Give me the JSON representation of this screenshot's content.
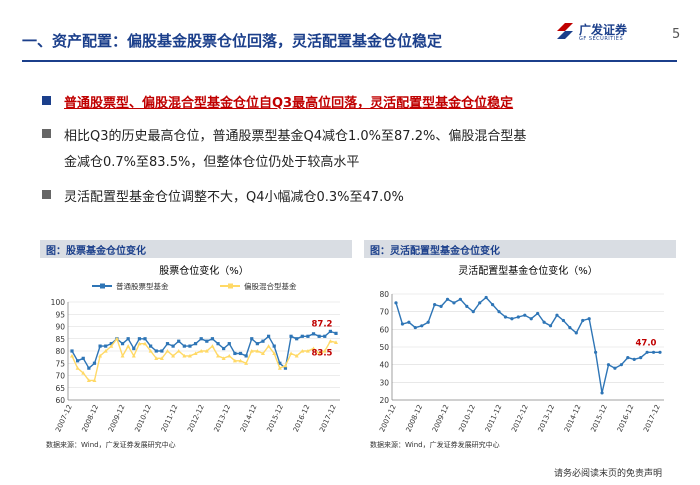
{
  "header": {
    "title": "一、资产配置：偏股基金股票仓位回落，灵活配置基金仓位稳定",
    "logo_cn": "广发证券",
    "logo_en": "GF SECURITIES",
    "page_number": "5"
  },
  "bullets": [
    {
      "text": "普通股票型、偏股混合型基金仓位自Q3最高位回落，灵活配置型基金仓位稳定"
    },
    {
      "text": "相比Q3的历史最高仓位，普通股票型基金Q4减仓1.0%至87.2%、偏股混合型基",
      "text_cont": "金减仓0.7%至83.5%，但整体仓位仍处于较高水平"
    },
    {
      "text": "灵活配置型基金仓位调整不大，Q4小幅减仓0.3%至47.0%"
    }
  ],
  "panels": [
    {
      "heading": "图：股票基金仓位变化",
      "source": "数据来源：Wind，广发证券发展研究中心"
    },
    {
      "heading": "图：灵活配置型基金仓位变化",
      "source": "数据来源：Wind，广发证券发展研究中心"
    }
  ],
  "footer": "请务必阅读末页的免责声明",
  "colors": {
    "navy": "#1b3f8b",
    "red": "#c00000",
    "series_blue": "#2e75b6",
    "series_yellow": "#ffd966"
  },
  "chart_data": [
    {
      "type": "line",
      "title": "股票仓位变化（%）",
      "xlabel": "",
      "ylabel": "",
      "ylim": [
        60,
        100
      ],
      "yticks": [
        60,
        65,
        70,
        75,
        80,
        85,
        90,
        95,
        100
      ],
      "x_tick_labels": [
        "2007-12",
        "2008-12",
        "2009-12",
        "2010-12",
        "2011-12",
        "2012-12",
        "2013-12",
        "2014-12",
        "2015-12",
        "2016-12",
        "2017-12"
      ],
      "legend_position": "top",
      "grid": true,
      "annotations": [
        {
          "text": "87.2",
          "series": 0
        },
        {
          "text": "83.5",
          "series": 1
        }
      ],
      "series": [
        {
          "name": "普通股票型基金",
          "color": "#2e75b6",
          "marker": "square",
          "values": [
            80,
            76,
            77,
            73,
            75,
            82,
            82,
            83,
            85,
            83,
            85,
            81,
            85,
            85,
            82,
            80,
            80,
            83,
            82,
            84,
            82,
            82,
            83,
            85,
            84,
            85,
            83,
            81,
            83,
            79,
            79,
            78,
            85,
            83,
            84,
            86,
            82,
            75,
            73,
            86,
            85,
            86,
            86,
            87,
            86,
            86,
            88,
            87.2
          ]
        },
        {
          "name": "偏股混合型基金",
          "color": "#ffd966",
          "marker": "triangle",
          "values": [
            78,
            73,
            71,
            68,
            68,
            78,
            80,
            82,
            85,
            78,
            82,
            78,
            83,
            83,
            80,
            77,
            77,
            80,
            78,
            80,
            78,
            78,
            79,
            80,
            80,
            82,
            78,
            77,
            78,
            76,
            76,
            75,
            80,
            80,
            79,
            82,
            79,
            73,
            74,
            79,
            78,
            80,
            80,
            81,
            79,
            80,
            84,
            83.5
          ]
        }
      ]
    },
    {
      "type": "line",
      "title": "灵活配置型基金仓位变化（%）",
      "xlabel": "",
      "ylabel": "",
      "ylim": [
        20,
        80
      ],
      "yticks": [
        20,
        30,
        40,
        50,
        60,
        70,
        80
      ],
      "x_tick_labels": [
        "2007-12",
        "2008-12",
        "2009-12",
        "2010-12",
        "2011-12",
        "2012-12",
        "2013-12",
        "2014-12",
        "2015-12",
        "2016-12",
        "2017-12"
      ],
      "legend_position": "none",
      "grid": true,
      "annotations": [
        {
          "text": "47.0",
          "series": 0
        }
      ],
      "series": [
        {
          "name": "",
          "color": "#2e75b6",
          "marker": "circle",
          "values": [
            75,
            63,
            64,
            61,
            62,
            64,
            74,
            73,
            77,
            75,
            77,
            73,
            70,
            75,
            78,
            74,
            70,
            67,
            66,
            67,
            68,
            66,
            69,
            64,
            62,
            68,
            65,
            61,
            58,
            65,
            66,
            47,
            24,
            40,
            38,
            40,
            44,
            43,
            44,
            47,
            47,
            47.0
          ]
        }
      ]
    }
  ]
}
